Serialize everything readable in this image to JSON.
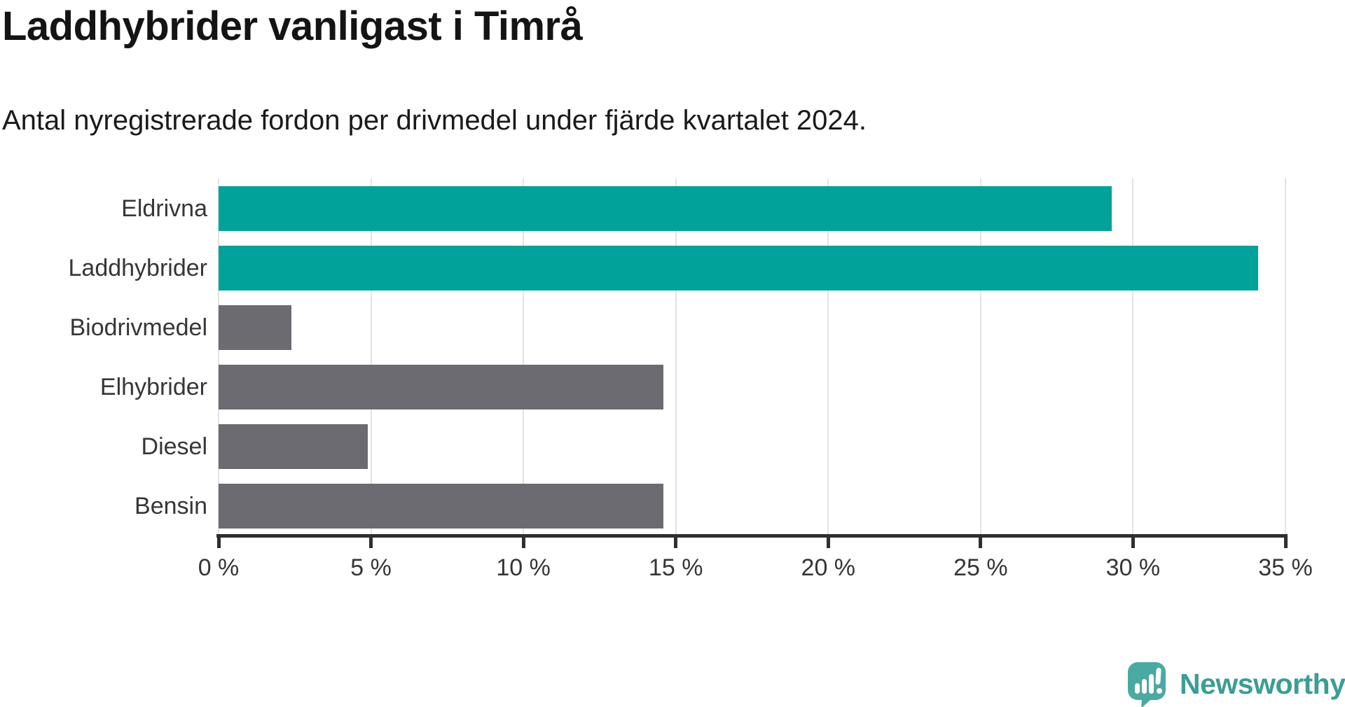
{
  "header": {
    "title": "Laddhybrider vanligast i Timrå",
    "subtitle": "Antal nyregistrerade fordon per drivmedel under fjärde kvartalet 2024."
  },
  "chart_data": {
    "type": "bar",
    "orientation": "horizontal",
    "title": "Laddhybrider vanligast i Timrå",
    "subtitle": "Antal nyregistrerade fordon per drivmedel under fjärde kvartalet 2024.",
    "categories": [
      "Eldrivna",
      "Laddhybrider",
      "Biodrivmedel",
      "Elhybrider",
      "Diesel",
      "Bensin"
    ],
    "values": [
      29.3,
      34.1,
      2.4,
      14.6,
      4.9,
      14.6
    ],
    "unit": "%",
    "bar_colors": [
      "highlight",
      "highlight",
      "default",
      "default",
      "default",
      "default"
    ],
    "highlight_color": "#00a29a",
    "default_color": "#6c6b71",
    "xlim": [
      0,
      35
    ],
    "xticks": [
      0,
      5,
      10,
      15,
      20,
      25,
      30,
      35
    ],
    "xtick_labels": [
      "0 %",
      "5 %",
      "10 %",
      "15 %",
      "20 %",
      "25 %",
      "30 %",
      "35 %"
    ],
    "grid": true,
    "gridline_color": "#e3e3e3",
    "legend": "none"
  },
  "footer": {
    "brand": "Newsworthy",
    "brand_text_color": "#3c9d95",
    "logo_color": "#4aa9a1",
    "logo_tail_color": "#3f948d"
  }
}
